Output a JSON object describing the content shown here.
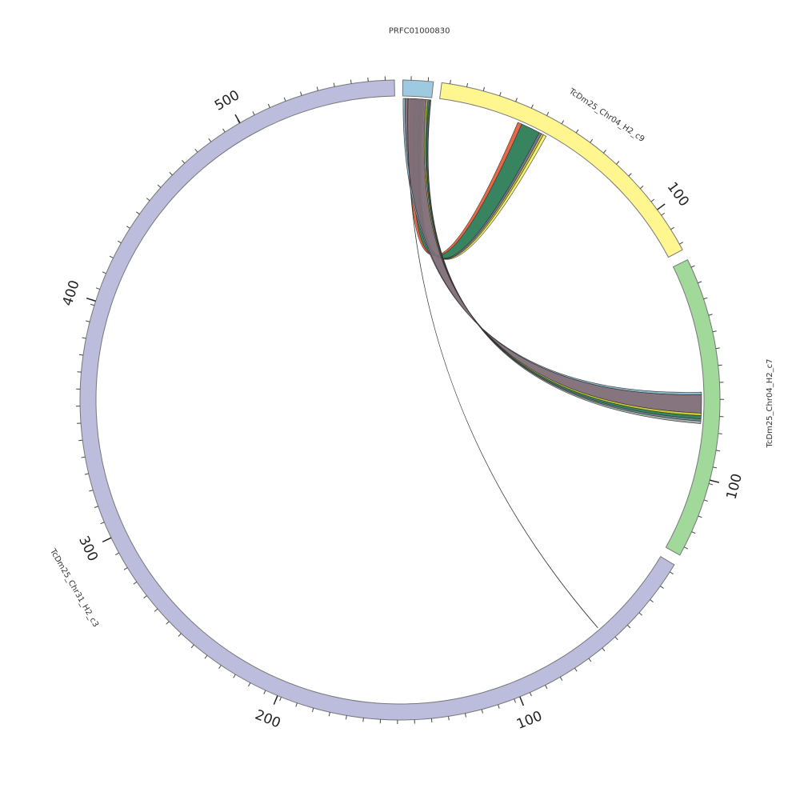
{
  "chart_data": {
    "type": "chord",
    "segments": [
      {
        "name": "PRFC01000830",
        "color": "#9ecae1",
        "tick_labels": []
      },
      {
        "name": "TcDm25_Chr04_H2_c9",
        "color": "#fff68f",
        "tick_labels": [
          "100"
        ]
      },
      {
        "name": "TcDm25_Chr04_H2_c7",
        "color": "#a1d99b",
        "tick_labels": [
          "100"
        ]
      },
      {
        "name": "TcDm25_Chr31_H2_c3",
        "color": "#bcbddc",
        "tick_labels": [
          "100",
          "200",
          "300",
          "400",
          "500"
        ]
      }
    ],
    "links": [
      {
        "from": "PRFC01000830",
        "to": "TcDm25_Chr04_H2_c9",
        "colors": [
          "#e8613c",
          "#2e7d57",
          "#6f6f91",
          "#c9c13a",
          "#f3ee66"
        ]
      },
      {
        "from": "PRFC01000830",
        "to": "TcDm25_Chr04_H2_c7",
        "colors": [
          "#86b6c9",
          "#806e78",
          "#c7c728",
          "#2e7d57",
          "#5f8a8a",
          "#a0a8a8"
        ]
      },
      {
        "from": "PRFC01000830",
        "to": "TcDm25_Chr31_H2_c3",
        "colors": [
          "#333333"
        ]
      }
    ]
  }
}
